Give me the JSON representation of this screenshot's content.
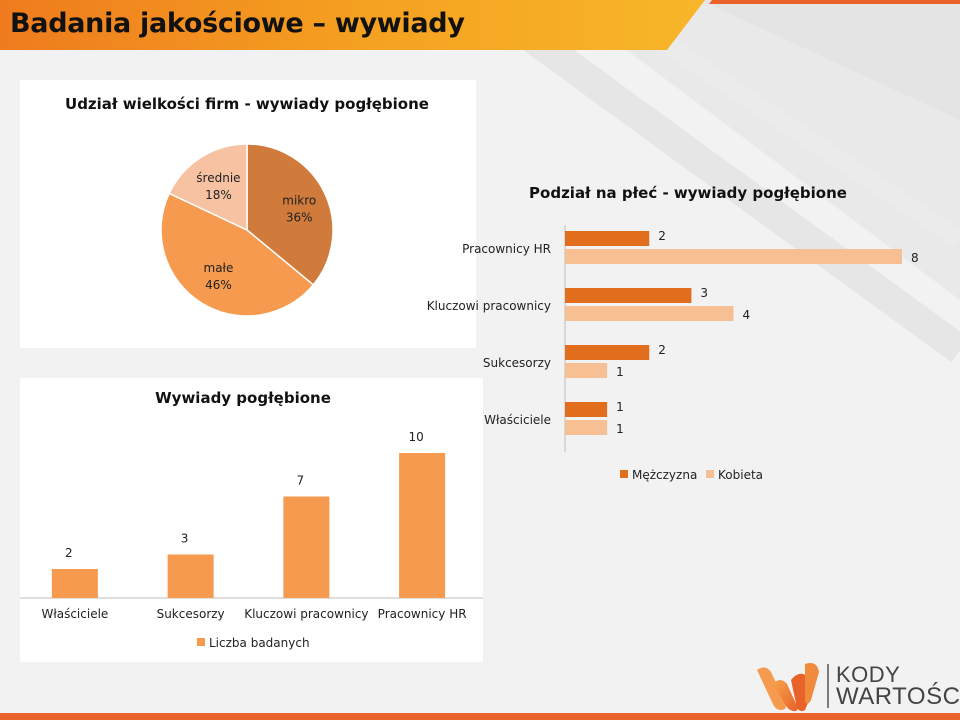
{
  "slide": {
    "title": "Badania jakościowe – wywiady",
    "logo": {
      "line1": "KODY",
      "line2": "WARTOŚCI"
    }
  },
  "colors": {
    "accent": "#e8622a",
    "orange_dark": "#d07035",
    "orange_mid": "#f59a4e",
    "orange_light": "#f7bf9c",
    "male": "#e06e1d",
    "female": "#f7c094",
    "bar": "#f59a4e"
  },
  "chart_data": [
    {
      "id": "pie",
      "type": "pie",
      "title": "Udział wielkości firm - wywiady pogłębione",
      "slices": [
        {
          "label": "mikro",
          "value": 36,
          "display": "36%",
          "color": "#d07a3c"
        },
        {
          "label": "małe",
          "value": 46,
          "display": "46%",
          "color": "#f59a4e"
        },
        {
          "label": "średnie",
          "value": 18,
          "display": "18%",
          "color": "#f7c2a2"
        }
      ]
    },
    {
      "id": "gender",
      "type": "bar",
      "orientation": "horizontal",
      "title": "Podział na płeć - wywiady pogłębione",
      "categories": [
        "Pracownicy HR",
        "Kluczowi pracownicy",
        "Sukcesorzy",
        "Właściciele"
      ],
      "series": [
        {
          "name": "Mężczyzna",
          "values": [
            2,
            3,
            2,
            1
          ],
          "color": "#e06e1d"
        },
        {
          "name": "Kobieta",
          "values": [
            8,
            4,
            1,
            1
          ],
          "color": "#f7c094"
        }
      ],
      "xlim": [
        0,
        8
      ],
      "legend": "bottom"
    },
    {
      "id": "interviews",
      "type": "bar",
      "title": "Wywiady pogłębione",
      "categories": [
        "Właściciele",
        "Sukcesorzy",
        "Kluczowi pracownicy",
        "Pracownicy HR"
      ],
      "series": [
        {
          "name": "Liczba badanych",
          "values": [
            2,
            3,
            7,
            10
          ],
          "color": "#f59a4e"
        }
      ],
      "ylim": [
        0,
        10
      ],
      "legend": "bottom"
    }
  ]
}
